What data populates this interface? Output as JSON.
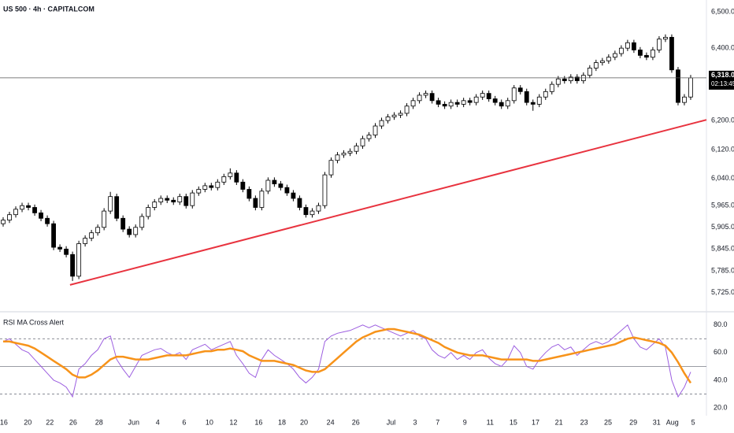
{
  "chart_data": [
    {
      "type": "candlestick",
      "title": "US 500 · 4h · CAPITALCOM",
      "up_color": "#ffffff",
      "down_color": "#000000",
      "border_color": "#000000",
      "xlim": [
        -0.5,
        111.5
      ],
      "ylim": [
        5674,
        6533
      ],
      "yticks": [
        {
          "value": 6500,
          "label": "6,500.0"
        },
        {
          "value": 6400,
          "label": "6,400.0"
        },
        {
          "value": 6200,
          "label": "6,200.0"
        },
        {
          "value": 6120,
          "label": "6,120.0"
        },
        {
          "value": 6040,
          "label": "6,040.0"
        },
        {
          "value": 5965,
          "label": "5,965.0"
        },
        {
          "value": 5905,
          "label": "5,905.0"
        },
        {
          "value": 5845,
          "label": "5,845.0"
        },
        {
          "value": 5785,
          "label": "5,785.0"
        },
        {
          "value": 5725,
          "label": "5,725.0"
        }
      ],
      "open": [
        5915,
        5925,
        5940,
        5955,
        5965,
        5960,
        5945,
        5930,
        5915,
        5850,
        5845,
        5830,
        5770,
        5860,
        5875,
        5890,
        5905,
        5950,
        5990,
        5930,
        5900,
        5885,
        5905,
        5935,
        5960,
        5975,
        5985,
        5980,
        5975,
        5990,
        5965,
        6000,
        6010,
        6020,
        6015,
        6030,
        6045,
        6055,
        6030,
        6010,
        5985,
        5960,
        6005,
        6035,
        6025,
        6015,
        6000,
        5985,
        5960,
        5940,
        5950,
        5965,
        6050,
        6090,
        6105,
        6110,
        6115,
        6130,
        6150,
        6160,
        6185,
        6200,
        6210,
        6215,
        6220,
        6240,
        6255,
        6270,
        6275,
        6255,
        6245,
        6240,
        6250,
        6245,
        6255,
        6250,
        6265,
        6275,
        6260,
        6250,
        6240,
        6255,
        6290,
        6280,
        6250,
        6245,
        6265,
        6280,
        6300,
        6315,
        6310,
        6320,
        6310,
        6325,
        6345,
        6360,
        6365,
        6375,
        6385,
        6400,
        6415,
        6395,
        6380,
        6375,
        6395,
        6425,
        6430,
        6340,
        6250,
        6265
      ],
      "high": [
        5933,
        5948,
        5963,
        5973,
        5973,
        5968,
        5953,
        5938,
        5923,
        5858,
        5853,
        5838,
        5868,
        5883,
        5898,
        5913,
        5958,
        6003,
        5998,
        5938,
        5908,
        5913,
        5943,
        5968,
        5983,
        5993,
        5993,
        5988,
        5998,
        5998,
        6008,
        6018,
        6028,
        6028,
        6038,
        6053,
        6068,
        6063,
        6038,
        6018,
        5993,
        6013,
        6043,
        6043,
        6033,
        6023,
        6008,
        5993,
        5968,
        5958,
        5973,
        6058,
        6098,
        6113,
        6118,
        6123,
        6138,
        6158,
        6168,
        6193,
        6208,
        6218,
        6223,
        6228,
        6248,
        6263,
        6278,
        6283,
        6283,
        6263,
        6253,
        6258,
        6258,
        6263,
        6263,
        6273,
        6283,
        6283,
        6268,
        6258,
        6263,
        6298,
        6298,
        6288,
        6258,
        6273,
        6288,
        6308,
        6323,
        6323,
        6328,
        6328,
        6333,
        6353,
        6368,
        6373,
        6383,
        6393,
        6408,
        6423,
        6423,
        6403,
        6388,
        6403,
        6433,
        6438,
        6438,
        6348,
        6273,
        6326
      ],
      "low": [
        5907,
        5917,
        5932,
        5947,
        5952,
        5937,
        5922,
        5907,
        5842,
        5837,
        5822,
        5757,
        5762,
        5852,
        5867,
        5882,
        5897,
        5942,
        5922,
        5892,
        5877,
        5877,
        5897,
        5927,
        5952,
        5967,
        5972,
        5967,
        5967,
        5957,
        5957,
        5992,
        6002,
        6007,
        6007,
        6022,
        6037,
        6022,
        6002,
        5977,
        5952,
        5952,
        5997,
        6017,
        6007,
        5992,
        5977,
        5952,
        5932,
        5932,
        5942,
        5957,
        6042,
        6082,
        6097,
        6102,
        6107,
        6122,
        6142,
        6152,
        6177,
        6192,
        6202,
        6207,
        6212,
        6232,
        6247,
        6262,
        6247,
        6237,
        6232,
        6232,
        6237,
        6237,
        6242,
        6242,
        6257,
        6252,
        6242,
        6232,
        6232,
        6247,
        6272,
        6242,
        6227,
        6237,
        6257,
        6272,
        6292,
        6302,
        6302,
        6302,
        6302,
        6317,
        6337,
        6352,
        6357,
        6367,
        6377,
        6392,
        6387,
        6372,
        6367,
        6367,
        6387,
        6417,
        6332,
        6242,
        6242,
        6257
      ],
      "close": [
        5925,
        5940,
        5955,
        5965,
        5960,
        5945,
        5930,
        5915,
        5850,
        5845,
        5830,
        5770,
        5860,
        5875,
        5890,
        5905,
        5950,
        5990,
        5930,
        5900,
        5885,
        5905,
        5935,
        5960,
        5975,
        5985,
        5980,
        5975,
        5990,
        5965,
        6000,
        6010,
        6020,
        6015,
        6030,
        6045,
        6055,
        6030,
        6010,
        5985,
        5960,
        6005,
        6035,
        6025,
        6015,
        6000,
        5985,
        5960,
        5940,
        5950,
        5965,
        6050,
        6090,
        6105,
        6110,
        6115,
        6130,
        6150,
        6160,
        6185,
        6200,
        6210,
        6215,
        6220,
        6240,
        6255,
        6270,
        6275,
        6255,
        6245,
        6240,
        6250,
        6245,
        6255,
        6250,
        6265,
        6275,
        6260,
        6250,
        6240,
        6255,
        6290,
        6280,
        6250,
        6245,
        6265,
        6280,
        6300,
        6315,
        6310,
        6320,
        6310,
        6325,
        6345,
        6360,
        6365,
        6375,
        6385,
        6400,
        6415,
        6395,
        6380,
        6375,
        6395,
        6425,
        6430,
        6340,
        6250,
        6265,
        6318
      ],
      "last_price": {
        "value": 6318,
        "label": "6,318.0",
        "countdown": "02:13:45"
      },
      "trendline": {
        "color": "#e8333f",
        "x": [
          10.6,
          111.5
        ],
        "y": [
          5746,
          6202
        ]
      }
    },
    {
      "type": "line",
      "title": "RSI MA Cross Alert",
      "xlim": [
        -0.5,
        111.5
      ],
      "ylim": [
        16,
        89
      ],
      "yticks": [
        {
          "value": 80,
          "label": "80.0"
        },
        {
          "value": 60,
          "label": "60.0"
        },
        {
          "value": 40,
          "label": "40.0"
        },
        {
          "value": 20,
          "label": "20.0"
        }
      ],
      "levels": [
        70,
        50,
        30
      ],
      "xticks": [
        {
          "value": 0.1,
          "label": "16"
        },
        {
          "value": 3.9,
          "label": "20"
        },
        {
          "value": 7.4,
          "label": "22"
        },
        {
          "value": 11.1,
          "label": "26"
        },
        {
          "value": 15.2,
          "label": "28"
        },
        {
          "value": 20.7,
          "label": "Jun"
        },
        {
          "value": 24.5,
          "label": "4"
        },
        {
          "value": 28.7,
          "label": "6"
        },
        {
          "value": 32.7,
          "label": "10"
        },
        {
          "value": 36.5,
          "label": "12"
        },
        {
          "value": 40.5,
          "label": "16"
        },
        {
          "value": 44.2,
          "label": "18"
        },
        {
          "value": 47.7,
          "label": "20"
        },
        {
          "value": 51.9,
          "label": "24"
        },
        {
          "value": 55.9,
          "label": "26"
        },
        {
          "value": 61.5,
          "label": "Jul"
        },
        {
          "value": 65.3,
          "label": "3"
        },
        {
          "value": 68.9,
          "label": "7"
        },
        {
          "value": 73.2,
          "label": "9"
        },
        {
          "value": 77.2,
          "label": "11"
        },
        {
          "value": 80.9,
          "label": "15"
        },
        {
          "value": 84.4,
          "label": "17"
        },
        {
          "value": 88.1,
          "label": "21"
        },
        {
          "value": 92.1,
          "label": "23"
        },
        {
          "value": 95.9,
          "label": "25"
        },
        {
          "value": 99.9,
          "label": "29"
        },
        {
          "value": 103.6,
          "label": "31"
        },
        {
          "value": 106.1,
          "label": "Aug"
        },
        {
          "value": 109.4,
          "label": "5"
        }
      ],
      "series": [
        {
          "color": "#9c5ee0",
          "values": [
            68,
            70,
            66,
            62,
            60,
            55,
            50,
            45,
            40,
            38,
            35,
            28,
            48,
            52,
            58,
            62,
            70,
            72,
            55,
            48,
            42,
            50,
            58,
            60,
            62,
            63,
            60,
            58,
            60,
            55,
            62,
            64,
            66,
            62,
            64,
            66,
            68,
            58,
            52,
            45,
            42,
            55,
            62,
            58,
            55,
            52,
            48,
            42,
            38,
            42,
            48,
            68,
            72,
            74,
            75,
            76,
            78,
            80,
            78,
            80,
            78,
            76,
            74,
            72,
            74,
            76,
            72,
            70,
            62,
            58,
            56,
            60,
            55,
            58,
            55,
            60,
            62,
            56,
            52,
            50,
            55,
            65,
            60,
            50,
            48,
            55,
            60,
            64,
            66,
            62,
            64,
            58,
            62,
            66,
            68,
            66,
            68,
            72,
            76,
            80,
            70,
            64,
            62,
            66,
            70,
            64,
            40,
            28,
            35,
            46
          ]
        },
        {
          "color": "#f7931a",
          "values": [
            68,
            68,
            67,
            66,
            65,
            63,
            60,
            57,
            54,
            51,
            48,
            44,
            42,
            42,
            44,
            47,
            51,
            55,
            57,
            57,
            56,
            55,
            55,
            55,
            56,
            57,
            58,
            58,
            58,
            58,
            59,
            60,
            61,
            61,
            62,
            62,
            63,
            62,
            61,
            58,
            56,
            54,
            54,
            54,
            53,
            52,
            51,
            49,
            47,
            46,
            46,
            48,
            52,
            56,
            60,
            64,
            68,
            71,
            73,
            75,
            76,
            77,
            77,
            76,
            75,
            74,
            73,
            71,
            69,
            67,
            64,
            62,
            60,
            59,
            58,
            58,
            58,
            57,
            56,
            55,
            55,
            55,
            55,
            55,
            54,
            54,
            55,
            56,
            57,
            58,
            59,
            60,
            61,
            62,
            63,
            64,
            65,
            66,
            68,
            70,
            71,
            70,
            69,
            68,
            67,
            65,
            60,
            53,
            45,
            38
          ]
        }
      ]
    }
  ]
}
